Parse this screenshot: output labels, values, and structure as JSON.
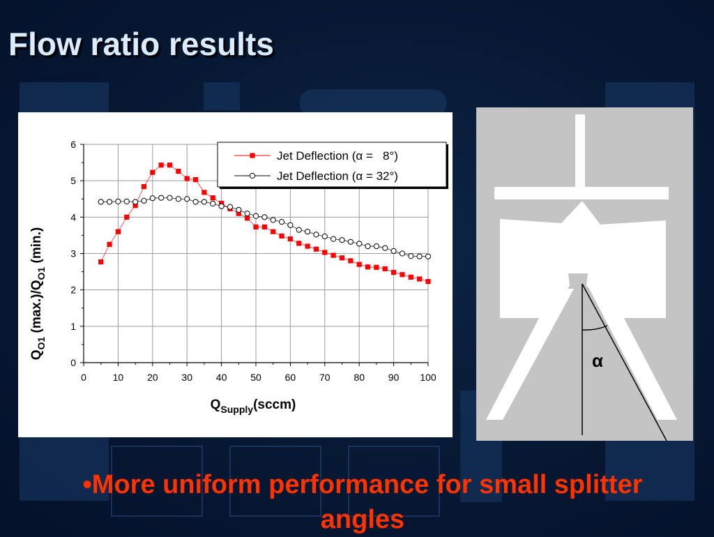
{
  "slide": {
    "title": "Flow ratio results",
    "bullet": "•More uniform performance for small splitter angles"
  },
  "figure": {
    "angle_label": "α"
  },
  "chart_data": {
    "type": "scatter",
    "xlabel_main": "Q",
    "xlabel_sub": "Supply",
    "xlabel_unit": "(sccm)",
    "ylabel_parts": [
      "Q",
      "O1",
      " (max.)/Q",
      "O1",
      " (min.)"
    ],
    "xlim": [
      0,
      100
    ],
    "ylim": [
      0,
      6
    ],
    "xticks": [
      0,
      10,
      20,
      30,
      40,
      50,
      60,
      70,
      80,
      90,
      100
    ],
    "yticks": [
      0,
      1,
      2,
      3,
      4,
      5,
      6
    ],
    "grid": true,
    "legend_position": "top-right",
    "series": [
      {
        "name": "Jet Deflection (α =   8°)",
        "color": "#ff0000",
        "marker": "square",
        "x": [
          5,
          7.5,
          10,
          12.5,
          15,
          17.5,
          20,
          22.5,
          25,
          27.5,
          30,
          32.5,
          35,
          37.5,
          40,
          42.5,
          45,
          47.5,
          50,
          52.5,
          55,
          57.5,
          60,
          62.5,
          65,
          67.5,
          70,
          72.5,
          75,
          77.5,
          80,
          82.5,
          85,
          87.5,
          90,
          92.5,
          95,
          97.5,
          100
        ],
        "y": [
          2.77,
          3.25,
          3.6,
          4.0,
          4.32,
          4.84,
          5.23,
          5.43,
          5.43,
          5.26,
          5.06,
          5.03,
          4.68,
          4.53,
          4.38,
          4.23,
          4.1,
          3.97,
          3.73,
          3.73,
          3.6,
          3.48,
          3.4,
          3.28,
          3.2,
          3.12,
          3.03,
          2.95,
          2.88,
          2.8,
          2.7,
          2.63,
          2.62,
          2.58,
          2.48,
          2.42,
          2.35,
          2.3,
          2.23
        ]
      },
      {
        "name": "Jet Deflection (α = 32°)",
        "color": "#000000",
        "marker": "circle",
        "x": [
          5,
          7.5,
          10,
          12.5,
          15,
          17.5,
          20,
          22.5,
          25,
          27.5,
          30,
          32.5,
          35,
          37.5,
          40,
          42.5,
          45,
          47.5,
          50,
          52.5,
          55,
          57.5,
          60,
          62.5,
          65,
          67.5,
          70,
          72.5,
          75,
          77.5,
          80,
          82.5,
          85,
          87.5,
          90,
          92.5,
          95,
          97.5,
          100
        ],
        "y": [
          4.42,
          4.42,
          4.43,
          4.43,
          4.42,
          4.45,
          4.52,
          4.53,
          4.53,
          4.5,
          4.5,
          4.42,
          4.42,
          4.37,
          4.3,
          4.28,
          4.2,
          4.1,
          4.03,
          4.0,
          3.92,
          3.87,
          3.78,
          3.65,
          3.6,
          3.52,
          3.47,
          3.4,
          3.37,
          3.32,
          3.27,
          3.2,
          3.2,
          3.15,
          3.07,
          3.0,
          2.93,
          2.92,
          2.92
        ]
      }
    ]
  }
}
